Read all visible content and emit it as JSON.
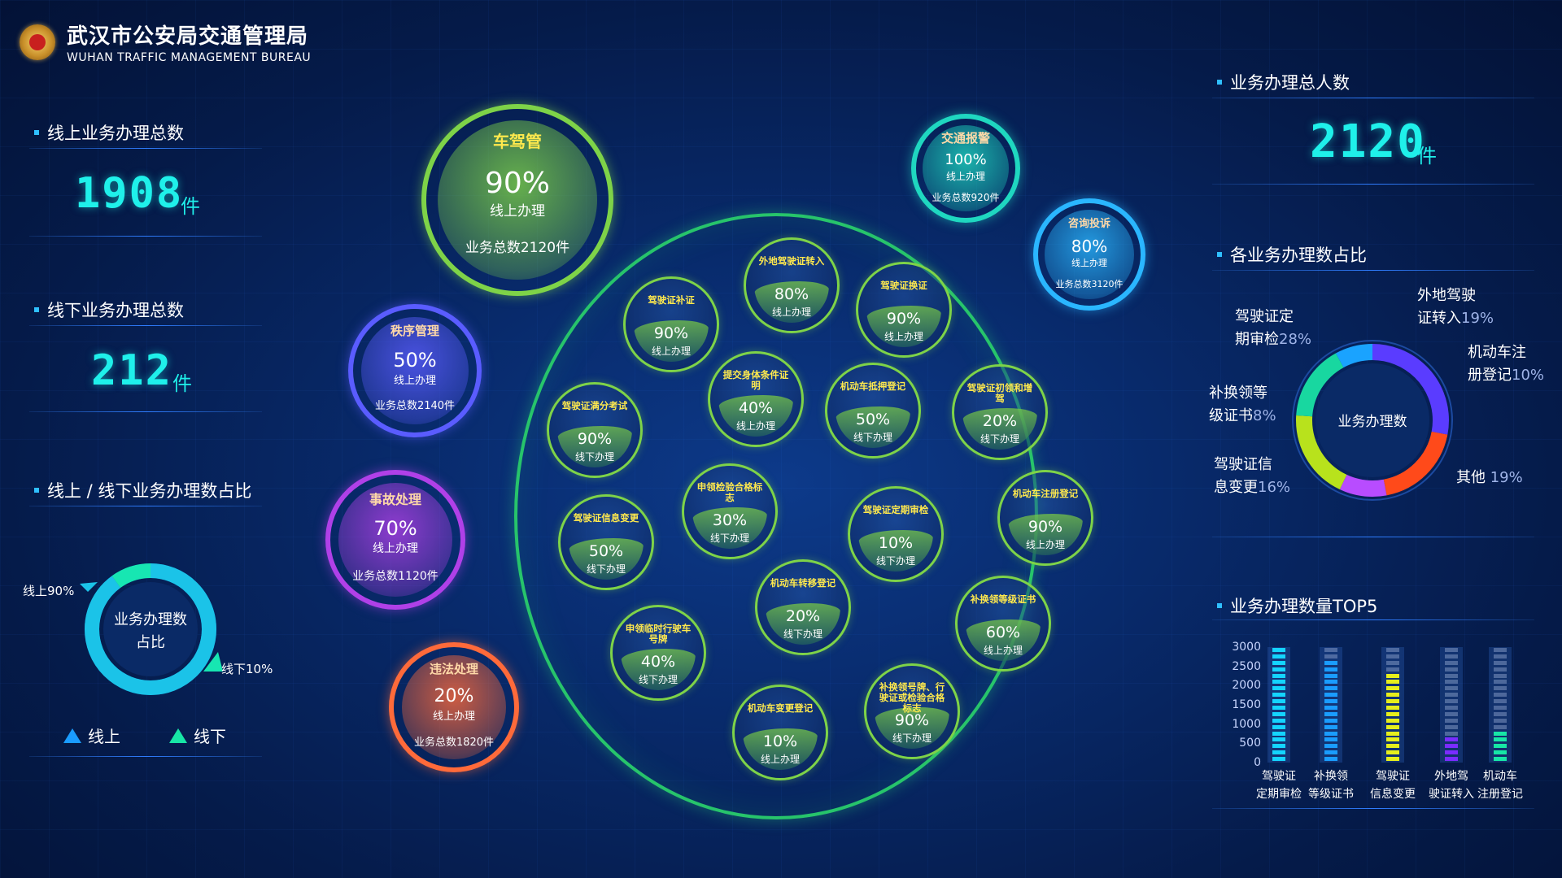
{
  "header": {
    "title_cn": "武汉市公安局交通管理局",
    "title_en": "WUHAN TRAFFIC MANAGEMENT BUREAU"
  },
  "left": {
    "online_title": "线上业务办理总数",
    "online_value": "1908",
    "offline_title": "线下业务办理总数",
    "offline_value": "212",
    "unit": "件",
    "ratio_title": "线上 / 线下业务办理数占比",
    "ratio_center_1": "业务办理数",
    "ratio_center_2": "占比",
    "online_pct_label": "线上90%",
    "offline_pct_label": "线下10%",
    "online_pct": 90,
    "offline_pct": 10,
    "legend_online": "线上",
    "legend_offline": "线下"
  },
  "big_bubbles": [
    {
      "title": "车驾管",
      "pct": "90%",
      "mode": "线上办理",
      "total": "业务总数2120件",
      "color": "#7ed348"
    },
    {
      "title": "秩序管理",
      "pct": "50%",
      "mode": "线上办理",
      "total": "业务总数2140件",
      "color": "#5a5cff"
    },
    {
      "title": "事故处理",
      "pct": "70%",
      "mode": "线上办理",
      "total": "业务总数1120件",
      "color": "#b040e8"
    },
    {
      "title": "违法处理",
      "pct": "20%",
      "mode": "线上办理",
      "total": "业务总数1820件",
      "color": "#ff6a3a"
    },
    {
      "title": "交通报警",
      "pct": "100%",
      "mode": "线上办理",
      "total": "业务总数920件",
      "color": "#1fd7c0"
    },
    {
      "title": "咨询投诉",
      "pct": "80%",
      "mode": "线上办理",
      "total": "业务总数3120件",
      "color": "#2ab6ff"
    }
  ],
  "services": [
    {
      "title": "驾驶证补证",
      "pct": "90%",
      "mode": "线上办理"
    },
    {
      "title": "外地驾驶证转入",
      "pct": "80%",
      "mode": "线上办理"
    },
    {
      "title": "驾驶证换证",
      "pct": "90%",
      "mode": "线上办理"
    },
    {
      "title": "驾驶证满分考试",
      "pct": "90%",
      "mode": "线下办理"
    },
    {
      "title": "提交身体条件证明",
      "pct": "40%",
      "mode": "线上办理"
    },
    {
      "title": "机动车抵押登记",
      "pct": "50%",
      "mode": "线下办理"
    },
    {
      "title": "驾驶证初领和增驾",
      "pct": "20%",
      "mode": "线下办理"
    },
    {
      "title": "申领检验合格标志",
      "pct": "30%",
      "mode": "线下办理"
    },
    {
      "title": "驾驶证信息变更",
      "pct": "50%",
      "mode": "线下办理"
    },
    {
      "title": "驾驶证定期审检",
      "pct": "10%",
      "mode": "线下办理"
    },
    {
      "title": "机动车注册登记",
      "pct": "90%",
      "mode": "线上办理"
    },
    {
      "title": "机动车转移登记",
      "pct": "20%",
      "mode": "线下办理"
    },
    {
      "title": "申领临时行驶车号牌",
      "pct": "40%",
      "mode": "线下办理"
    },
    {
      "title": "补换领等级证书",
      "pct": "60%",
      "mode": "线上办理"
    },
    {
      "title": "机动车变更登记",
      "pct": "10%",
      "mode": "线上办理"
    },
    {
      "title": "补换领号牌、行驶证或检验合格标志",
      "pct": "90%",
      "mode": "线下办理"
    }
  ],
  "right": {
    "total_title": "业务办理总人数",
    "total_value": "2120",
    "unit": "件",
    "share_title": "各业务办理数占比",
    "share_center": "业务办理数",
    "share_items": [
      {
        "label_1": "驾驶证定",
        "label_2": "期审检",
        "pct": "28%",
        "value": 28,
        "color": "#5a3cff"
      },
      {
        "label_1": "外地驾驶",
        "label_2": "证转入",
        "pct": "19%",
        "value": 19,
        "color": "#ff4a1a"
      },
      {
        "label_1": "机动车注",
        "label_2": "册登记",
        "pct": "10%",
        "value": 10,
        "color": "#b84cff"
      },
      {
        "label_1": "其他",
        "label_2": "",
        "pct": "19%",
        "value": 19,
        "color": "#b8e21c"
      },
      {
        "label_1": "驾驶证信",
        "label_2": "息变更",
        "pct": "16%",
        "value": 16,
        "color": "#18d7a0"
      },
      {
        "label_1": "补换领等",
        "label_2": "级证书",
        "pct": "8%",
        "value": 8,
        "color": "#1aa3ff"
      }
    ],
    "top5_title": "业务办理数量TOP5"
  },
  "chart_data": {
    "type": "bar",
    "title": "业务办理数量TOP5",
    "ylim": [
      0,
      3000
    ],
    "yticks": [
      "3000",
      "2500",
      "2000",
      "1500",
      "1000",
      "500",
      "0"
    ],
    "categories": [
      {
        "line1": "驾驶证",
        "line2": "定期审检"
      },
      {
        "line1": "补换领",
        "line2": "等级证书"
      },
      {
        "line1": "驾驶证",
        "line2": "信息变更"
      },
      {
        "line1": "外地驾",
        "line2": "驶证转入"
      },
      {
        "line1": "机动车",
        "line2": "注册登记"
      }
    ],
    "values": [
      3000,
      2700,
      2400,
      700,
      900
    ],
    "colors": [
      "#14d4ff",
      "#1a9cff",
      "#e6ee1c",
      "#7a2cff",
      "#17e6a6"
    ]
  }
}
